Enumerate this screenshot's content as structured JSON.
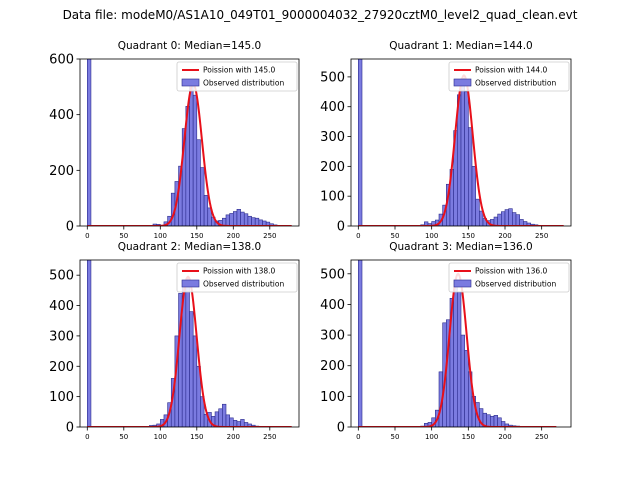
{
  "figure": {
    "suptitle": "Data file: modeM0/AS1A10_049T01_9000004032_27920cztM0_level2_quad_clean.evt"
  },
  "colors": {
    "bar_fill": "#7b7be0",
    "bar_edge": "#2a2a8c",
    "fit_line": "#e8101a"
  },
  "chart_data": [
    {
      "type": "bar",
      "title": "Quadrant 0: Median=145.0",
      "xlim": [
        -10,
        290
      ],
      "ylim": [
        0,
        600
      ],
      "xticks": [
        0,
        50,
        100,
        150,
        200,
        250
      ],
      "yticks": [
        0,
        200,
        400,
        600
      ],
      "legend": {
        "placement": "top-right",
        "entries": [
          "Poission with 145.0",
          "Observed distribution"
        ]
      },
      "fit": {
        "label": "Poission with 145.0",
        "mean": 145.0,
        "peak": 510,
        "range": [
          0,
          280
        ]
      },
      "hist": {
        "bin_width": 5,
        "bins": [
          [
            0,
            600
          ],
          [
            5,
            1
          ],
          [
            10,
            0
          ],
          [
            15,
            0
          ],
          [
            20,
            0
          ],
          [
            25,
            0
          ],
          [
            30,
            0
          ],
          [
            35,
            0
          ],
          [
            40,
            0
          ],
          [
            45,
            0
          ],
          [
            50,
            0
          ],
          [
            55,
            0
          ],
          [
            60,
            0
          ],
          [
            65,
            0
          ],
          [
            70,
            0
          ],
          [
            75,
            1
          ],
          [
            80,
            1
          ],
          [
            85,
            2
          ],
          [
            90,
            7
          ],
          [
            95,
            6
          ],
          [
            100,
            3
          ],
          [
            105,
            15
          ],
          [
            110,
            35
          ],
          [
            115,
            118
          ],
          [
            120,
            160
          ],
          [
            125,
            215
          ],
          [
            130,
            350
          ],
          [
            135,
            430
          ],
          [
            140,
            505
          ],
          [
            145,
            470
          ],
          [
            150,
            310
          ],
          [
            155,
            210
          ],
          [
            160,
            110
          ],
          [
            165,
            65
          ],
          [
            170,
            32
          ],
          [
            175,
            18
          ],
          [
            180,
            20
          ],
          [
            185,
            28
          ],
          [
            190,
            40
          ],
          [
            195,
            45
          ],
          [
            200,
            52
          ],
          [
            205,
            60
          ],
          [
            210,
            50
          ],
          [
            215,
            44
          ],
          [
            220,
            35
          ],
          [
            225,
            30
          ],
          [
            230,
            28
          ],
          [
            235,
            22
          ],
          [
            240,
            18
          ],
          [
            245,
            14
          ],
          [
            250,
            8
          ],
          [
            255,
            4
          ],
          [
            260,
            2
          ],
          [
            265,
            1
          ],
          [
            270,
            0
          ],
          [
            275,
            0
          ]
        ]
      }
    },
    {
      "type": "bar",
      "title": "Quadrant 1: Median=144.0",
      "xlim": [
        -10,
        290
      ],
      "ylim": [
        0,
        560
      ],
      "xticks": [
        0,
        50,
        100,
        150,
        200,
        250
      ],
      "yticks": [
        0,
        100,
        200,
        300,
        400,
        500
      ],
      "legend": {
        "placement": "top-right",
        "entries": [
          "Poission with 144.0",
          "Observed distribution"
        ]
      },
      "fit": {
        "label": "Poission with 144.0",
        "mean": 144.0,
        "peak": 505,
        "range": [
          0,
          280
        ]
      },
      "hist": {
        "bin_width": 5,
        "bins": [
          [
            0,
            560
          ],
          [
            5,
            1
          ],
          [
            10,
            0
          ],
          [
            15,
            0
          ],
          [
            20,
            0
          ],
          [
            25,
            0
          ],
          [
            30,
            0
          ],
          [
            35,
            0
          ],
          [
            40,
            0
          ],
          [
            45,
            0
          ],
          [
            50,
            0
          ],
          [
            55,
            0
          ],
          [
            60,
            0
          ],
          [
            65,
            0
          ],
          [
            70,
            0
          ],
          [
            75,
            1
          ],
          [
            80,
            2
          ],
          [
            85,
            4
          ],
          [
            90,
            14
          ],
          [
            95,
            8
          ],
          [
            100,
            15
          ],
          [
            105,
            20
          ],
          [
            110,
            40
          ],
          [
            115,
            70
          ],
          [
            120,
            140
          ],
          [
            125,
            190
          ],
          [
            130,
            320
          ],
          [
            135,
            440
          ],
          [
            140,
            495
          ],
          [
            145,
            450
          ],
          [
            150,
            330
          ],
          [
            155,
            200
          ],
          [
            160,
            90
          ],
          [
            165,
            50
          ],
          [
            170,
            25
          ],
          [
            175,
            18
          ],
          [
            180,
            22
          ],
          [
            185,
            30
          ],
          [
            190,
            40
          ],
          [
            195,
            48
          ],
          [
            200,
            55
          ],
          [
            205,
            58
          ],
          [
            210,
            45
          ],
          [
            215,
            38
          ],
          [
            220,
            22
          ],
          [
            225,
            15
          ],
          [
            230,
            10
          ],
          [
            235,
            6
          ],
          [
            240,
            4
          ],
          [
            245,
            2
          ],
          [
            250,
            1
          ],
          [
            255,
            1
          ],
          [
            260,
            0
          ]
        ]
      }
    },
    {
      "type": "bar",
      "title": "Quadrant 2: Median=138.0",
      "xlim": [
        -10,
        290
      ],
      "ylim": [
        0,
        550
      ],
      "xticks": [
        0,
        50,
        100,
        150,
        200,
        250
      ],
      "yticks": [
        0,
        100,
        200,
        300,
        400,
        500
      ],
      "legend": {
        "placement": "top-right",
        "entries": [
          "Poission with 138.0",
          "Observed distribution"
        ]
      },
      "fit": {
        "label": "Poission with 138.0",
        "mean": 138.0,
        "peak": 495,
        "range": [
          0,
          280
        ]
      },
      "hist": {
        "bin_width": 5,
        "bins": [
          [
            0,
            550
          ],
          [
            5,
            1
          ],
          [
            10,
            0
          ],
          [
            15,
            0
          ],
          [
            20,
            0
          ],
          [
            25,
            0
          ],
          [
            30,
            0
          ],
          [
            35,
            0
          ],
          [
            40,
            0
          ],
          [
            45,
            0
          ],
          [
            50,
            0
          ],
          [
            55,
            0
          ],
          [
            60,
            0
          ],
          [
            65,
            0
          ],
          [
            70,
            0
          ],
          [
            75,
            2
          ],
          [
            80,
            2
          ],
          [
            85,
            5
          ],
          [
            90,
            6
          ],
          [
            95,
            10
          ],
          [
            100,
            25
          ],
          [
            105,
            40
          ],
          [
            110,
            80
          ],
          [
            115,
            160
          ],
          [
            120,
            300
          ],
          [
            125,
            440
          ],
          [
            130,
            480
          ],
          [
            135,
            490
          ],
          [
            140,
            380
          ],
          [
            145,
            300
          ],
          [
            150,
            200
          ],
          [
            155,
            100
          ],
          [
            160,
            42
          ],
          [
            165,
            48
          ],
          [
            170,
            35
          ],
          [
            175,
            50
          ],
          [
            180,
            60
          ],
          [
            185,
            75
          ],
          [
            190,
            40
          ],
          [
            195,
            30
          ],
          [
            200,
            22
          ],
          [
            205,
            18
          ],
          [
            210,
            25
          ],
          [
            215,
            15
          ],
          [
            220,
            10
          ],
          [
            225,
            6
          ],
          [
            230,
            3
          ],
          [
            235,
            2
          ],
          [
            240,
            1
          ],
          [
            245,
            0
          ],
          [
            250,
            0
          ],
          [
            255,
            0
          ],
          [
            260,
            0
          ],
          [
            265,
            0
          ]
        ]
      }
    },
    {
      "type": "bar",
      "title": "Quadrant 3: Median=136.0",
      "xlim": [
        -10,
        290
      ],
      "ylim": [
        0,
        545
      ],
      "xticks": [
        0,
        50,
        100,
        150,
        200,
        250
      ],
      "yticks": [
        0,
        100,
        200,
        300,
        400,
        500
      ],
      "legend": {
        "placement": "top-right",
        "entries": [
          "Poission with 136.0",
          "Observed distribution"
        ]
      },
      "fit": {
        "label": "Poission with 136.0",
        "mean": 136.0,
        "peak": 500,
        "range": [
          0,
          270
        ]
      },
      "hist": {
        "bin_width": 5,
        "bins": [
          [
            0,
            545
          ],
          [
            5,
            1
          ],
          [
            10,
            0
          ],
          [
            15,
            0
          ],
          [
            20,
            0
          ],
          [
            25,
            0
          ],
          [
            30,
            0
          ],
          [
            35,
            0
          ],
          [
            40,
            0
          ],
          [
            45,
            0
          ],
          [
            50,
            0
          ],
          [
            55,
            0
          ],
          [
            60,
            0
          ],
          [
            65,
            0
          ],
          [
            70,
            0
          ],
          [
            75,
            1
          ],
          [
            80,
            2
          ],
          [
            85,
            3
          ],
          [
            90,
            12
          ],
          [
            95,
            15
          ],
          [
            100,
            30
          ],
          [
            105,
            55
          ],
          [
            110,
            180
          ],
          [
            115,
            340
          ],
          [
            120,
            350
          ],
          [
            125,
            420
          ],
          [
            130,
            480
          ],
          [
            135,
            440
          ],
          [
            140,
            300
          ],
          [
            145,
            250
          ],
          [
            150,
            180
          ],
          [
            155,
            100
          ],
          [
            160,
            80
          ],
          [
            165,
            60
          ],
          [
            170,
            45
          ],
          [
            175,
            40
          ],
          [
            180,
            35
          ],
          [
            185,
            38
          ],
          [
            190,
            30
          ],
          [
            195,
            18
          ],
          [
            200,
            10
          ],
          [
            205,
            6
          ],
          [
            210,
            4
          ],
          [
            215,
            3
          ],
          [
            220,
            2
          ],
          [
            225,
            1
          ],
          [
            230,
            1
          ],
          [
            235,
            0
          ],
          [
            240,
            0
          ]
        ]
      }
    }
  ]
}
